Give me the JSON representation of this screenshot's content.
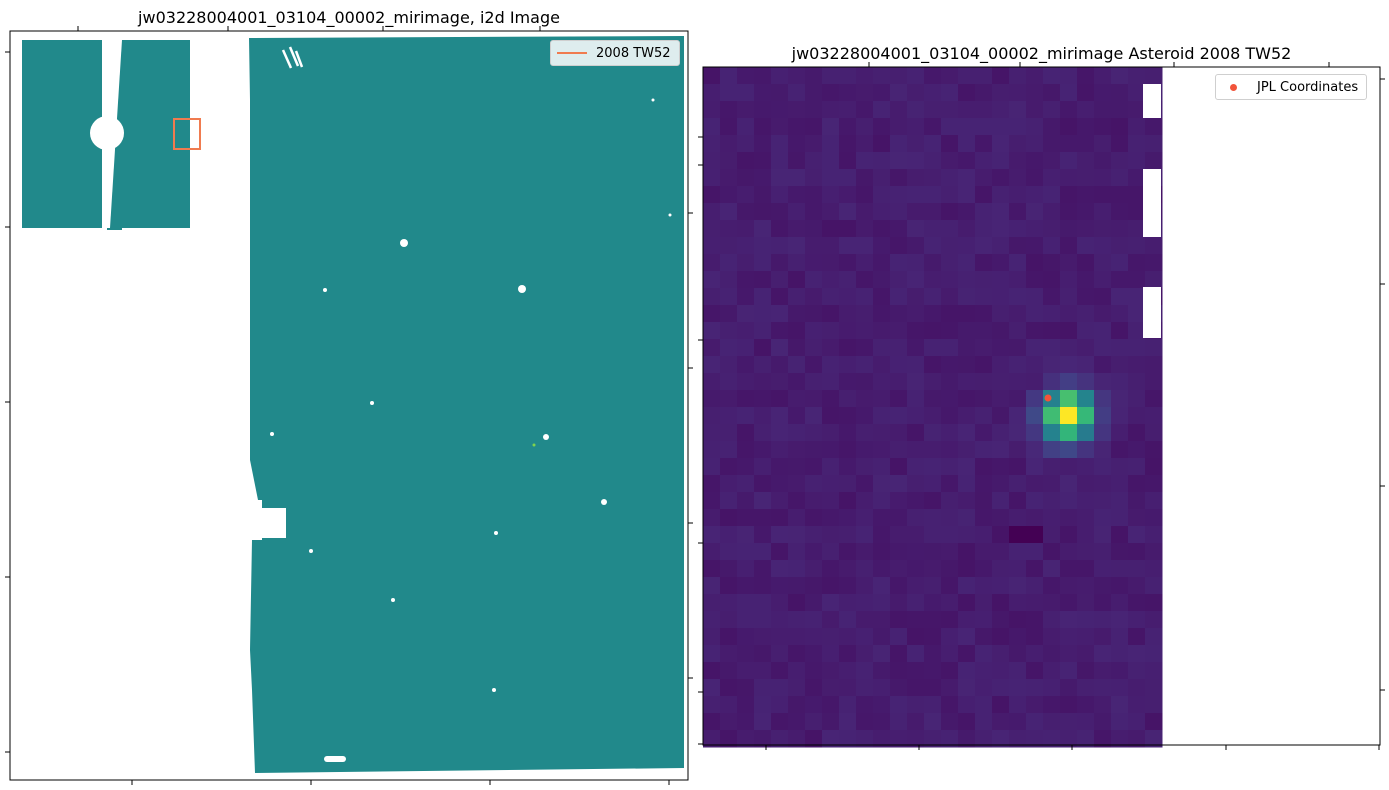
{
  "colors": {
    "teal": "#21898b",
    "box": "#f07b4f",
    "jpl_marker": "#f2543a",
    "viridis_low": "#440154",
    "viridis_bg": "#472c7a",
    "viridis_high": "#fde725"
  },
  "chart_data": [
    {
      "type": "heatmap",
      "title": "jw03228004001_03104_00002_mirimage,  i2d Image",
      "legend": [
        {
          "label": "2008 TW52",
          "style": "line",
          "color": "#f07b4f"
        }
      ],
      "legend_placement": "top-right",
      "tick_labels_visible": false,
      "colormap": "viridis",
      "grid": false
    },
    {
      "type": "heatmap",
      "title": "jw03228004001_03104_00002_mirimage Asteroid 2008 TW52",
      "legend": [
        {
          "label": "JPL Coordinates",
          "style": "point",
          "color": "#f2543a"
        }
      ],
      "legend_placement": "top-right",
      "tick_labels_visible": false,
      "colormap": "viridis",
      "grid": false,
      "source_peak": {
        "col": 21,
        "row": 20
      },
      "grid_cols": 27,
      "grid_rows": 40
    }
  ]
}
